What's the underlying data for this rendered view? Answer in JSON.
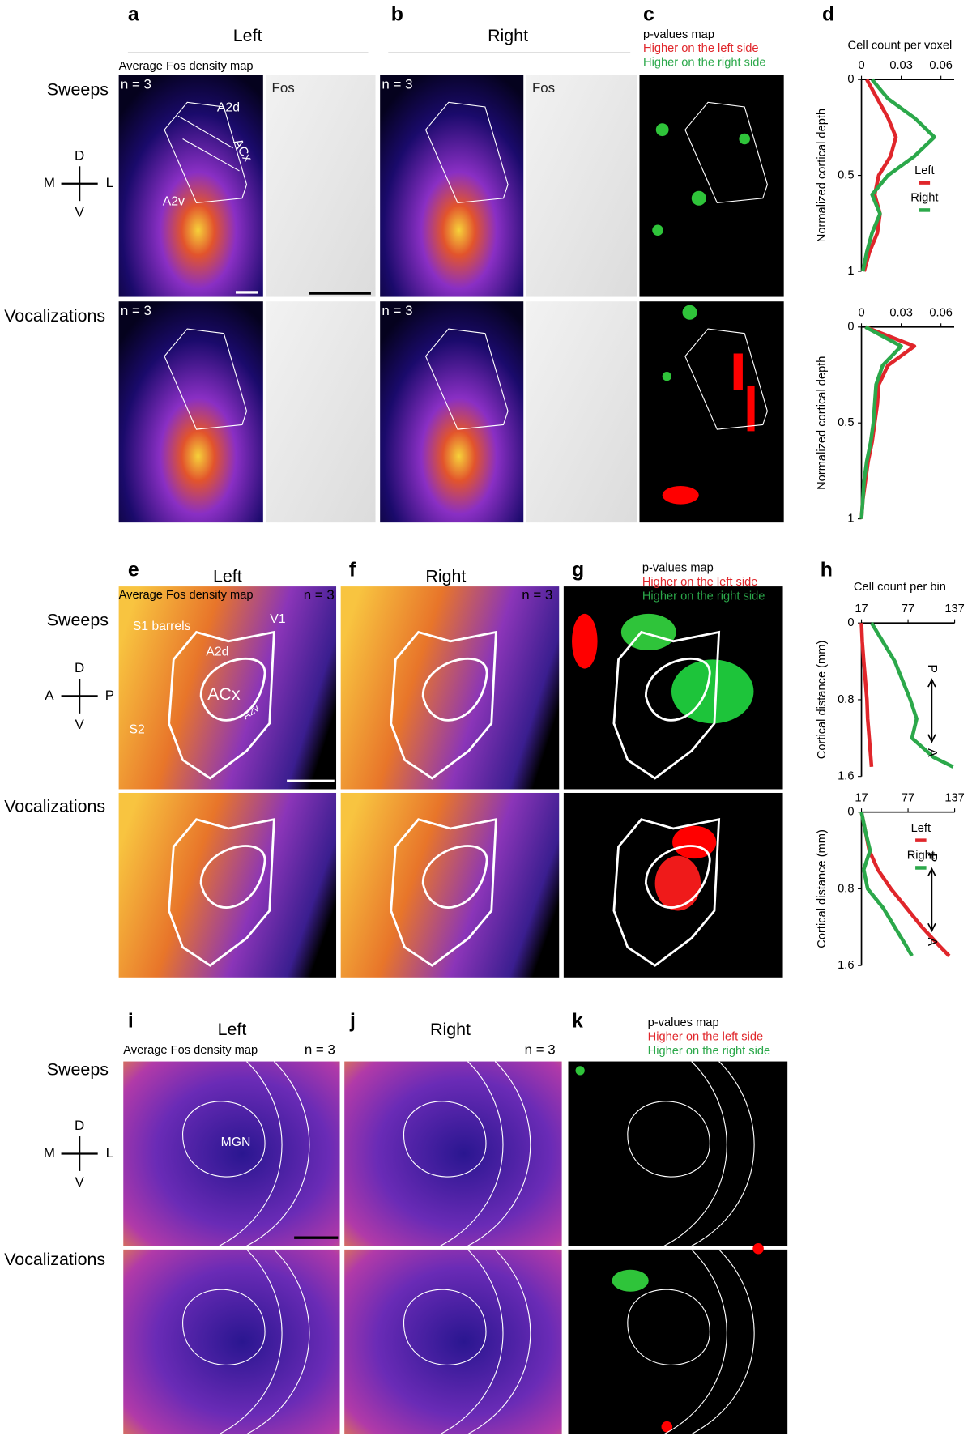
{
  "panels": [
    "a",
    "b",
    "c",
    "d",
    "e",
    "f",
    "g",
    "h",
    "i",
    "j",
    "k"
  ],
  "columns": {
    "left": "Left",
    "right": "Right"
  },
  "map_title": "Average Fos density map",
  "rows": [
    "Sweeps",
    "Vocalizations"
  ],
  "compass_mlv": [
    "D",
    "M",
    "L",
    "V"
  ],
  "compass_apv": [
    "D",
    "A",
    "P",
    "V"
  ],
  "n_label": "n = 3",
  "fos_label": "Fos",
  "pvalue_legend": [
    "p-values map",
    "Higher on the left side",
    "Higher on the right side"
  ],
  "region_labels_a": [
    "A2d",
    "ACx",
    "A2v"
  ],
  "region_labels_e": [
    "S1 barrels",
    "A2d",
    "V1",
    "ACx",
    "A2v",
    "S2"
  ],
  "region_label_i": "MGN",
  "chart_data": [
    {
      "type": "line",
      "xlabel": "Cell count per voxel",
      "ylabel": "Normalized cortical depth",
      "xlim": [
        0,
        0.07
      ],
      "xticks": [
        0,
        0.03,
        0.06
      ],
      "ylim": [
        0,
        1
      ],
      "yticks": [
        0,
        0.5,
        1
      ],
      "legend": true,
      "y": [
        0,
        0.1,
        0.2,
        0.3,
        0.4,
        0.5,
        0.6,
        0.7,
        0.8,
        0.9,
        1
      ],
      "series": [
        {
          "name": "Left",
          "color": "#e0262b",
          "values": [
            0.004,
            0.012,
            0.02,
            0.026,
            0.022,
            0.013,
            0.01,
            0.014,
            0.012,
            0.006,
            0.002
          ]
        },
        {
          "name": "Right",
          "color": "#2ba84a",
          "values": [
            0.008,
            0.02,
            0.04,
            0.055,
            0.04,
            0.02,
            0.008,
            0.014,
            0.008,
            0.004,
            0.001
          ]
        }
      ]
    },
    {
      "type": "line",
      "ylabel": "Normalized cortical depth",
      "xlim": [
        0,
        0.07
      ],
      "xticks": [
        0,
        0.03,
        0.06
      ],
      "ylim": [
        0,
        1
      ],
      "yticks": [
        0,
        0.5,
        1
      ],
      "legend": false,
      "y": [
        0,
        0.1,
        0.2,
        0.3,
        0.4,
        0.5,
        0.6,
        0.7,
        0.8,
        0.9,
        1
      ],
      "series": [
        {
          "name": "Left",
          "color": "#e0262b",
          "values": [
            0.003,
            0.04,
            0.02,
            0.013,
            0.012,
            0.01,
            0.008,
            0.005,
            0.003,
            0.001,
            0
          ]
        },
        {
          "name": "Right",
          "color": "#2ba84a",
          "values": [
            0.003,
            0.03,
            0.016,
            0.011,
            0.01,
            0.009,
            0.007,
            0.004,
            0.002,
            0.001,
            0
          ]
        }
      ]
    },
    {
      "type": "line",
      "xlabel": "Cell count per bin",
      "ylabel": "Cortical distance (mm)",
      "xlim": [
        17,
        137
      ],
      "xticks": [
        17,
        77,
        137
      ],
      "ylim": [
        0,
        1.6
      ],
      "yticks": [
        0,
        0.8,
        1.6
      ],
      "legend": false,
      "annotations": [
        "P",
        "A"
      ],
      "y": [
        0,
        0.2,
        0.4,
        0.6,
        0.8,
        1.0,
        1.2,
        1.4,
        1.5
      ],
      "series": [
        {
          "name": "Left",
          "color": "#e0262b",
          "values": [
            17,
            18,
            20,
            22,
            24,
            25,
            27,
            29,
            30
          ]
        },
        {
          "name": "Right",
          "color": "#2ba84a",
          "values": [
            30,
            45,
            60,
            70,
            80,
            88,
            82,
            110,
            135
          ]
        }
      ]
    },
    {
      "type": "line",
      "ylabel": "Cortical distance (mm)",
      "xlim": [
        17,
        137
      ],
      "xticks": [
        17,
        77,
        137
      ],
      "ylim": [
        0,
        1.6
      ],
      "yticks": [
        0,
        0.8,
        1.6
      ],
      "legend": true,
      "annotations": [
        "P",
        "A"
      ],
      "y": [
        0,
        0.2,
        0.4,
        0.6,
        0.8,
        1.0,
        1.2,
        1.4,
        1.5
      ],
      "series": [
        {
          "name": "Left",
          "color": "#e0262b",
          "values": [
            17,
            22,
            27,
            38,
            55,
            75,
            95,
            118,
            130
          ]
        },
        {
          "name": "Right",
          "color": "#2ba84a",
          "values": [
            17,
            22,
            28,
            20,
            25,
            45,
            60,
            75,
            82
          ]
        }
      ]
    }
  ]
}
